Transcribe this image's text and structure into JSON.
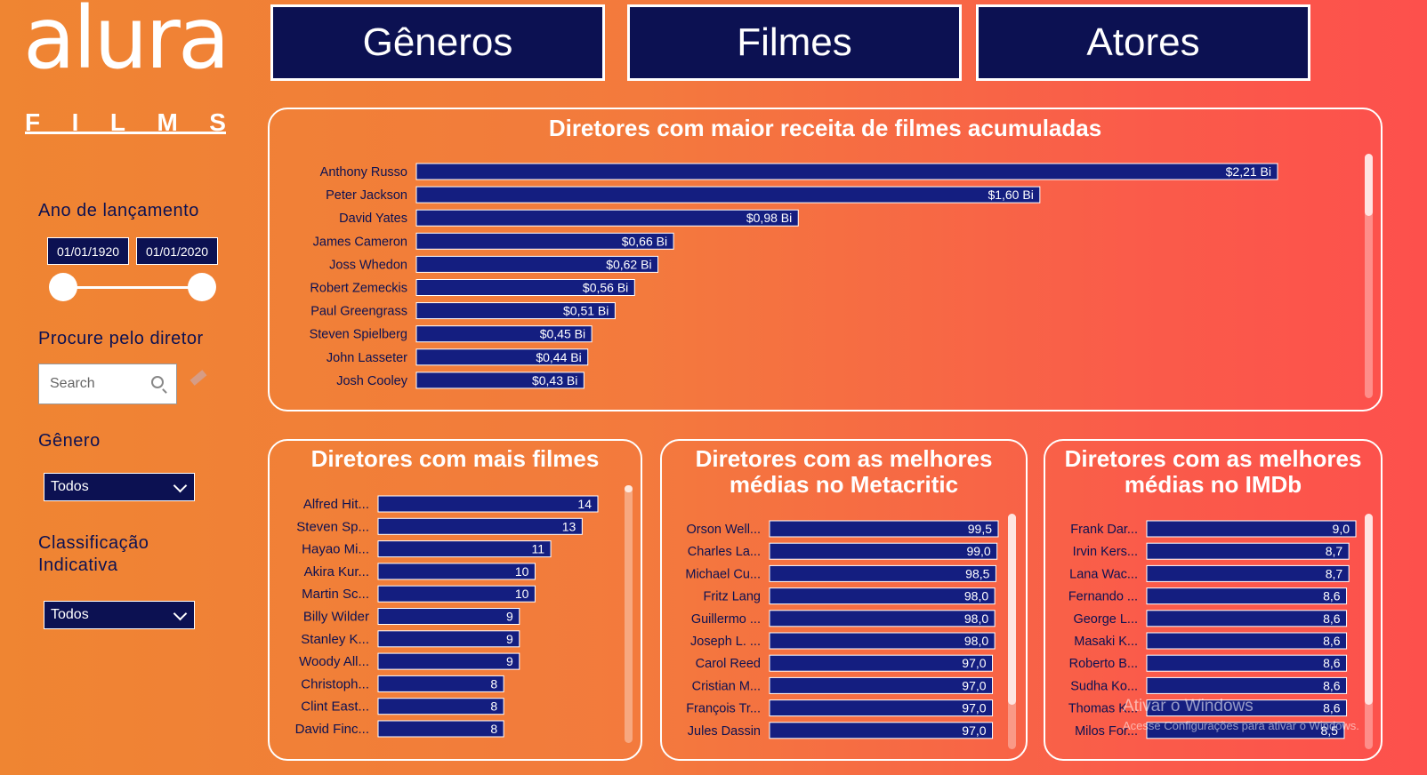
{
  "logo": {
    "main": "alura",
    "sub": [
      "F",
      "I",
      "L",
      "M",
      "S"
    ]
  },
  "nav": [
    {
      "label": "Gêneros"
    },
    {
      "label": "Filmes"
    },
    {
      "label": "Atores"
    }
  ],
  "filters": {
    "year_label": "Ano de lançamento",
    "date_start": "01/01/1920",
    "date_end": "01/01/2020",
    "director_search_label": "Procure pelo diretor",
    "search_placeholder": "Search",
    "genre_label": "Gênero",
    "genre_value": "Todos",
    "rating_label_1": "Classificação",
    "rating_label_2": "Indicativa",
    "rating_value": "Todos"
  },
  "colors": {
    "bar": "#141e80",
    "bar_stroke": "#ffffff",
    "dark": "#0c1152",
    "text": "#0c1152"
  },
  "chart_data": [
    {
      "type": "bar",
      "orientation": "horizontal",
      "title": "Diretores com maior receita de filmes acumuladas",
      "categories": [
        "Anthony Russo",
        "Peter Jackson",
        "David Yates",
        "James Cameron",
        "Joss Whedon",
        "Robert Zemeckis",
        "Paul Greengrass",
        "Steven Spielberg",
        "John Lasseter",
        "Josh Cooley"
      ],
      "values": [
        2.21,
        1.6,
        0.98,
        0.66,
        0.62,
        0.56,
        0.51,
        0.45,
        0.44,
        0.43
      ],
      "value_labels": [
        "$2,21 Bi",
        "$1,60 Bi",
        "$0,98 Bi",
        "$0,66 Bi",
        "$0,62 Bi",
        "$0,56 Bi",
        "$0,51 Bi",
        "$0,45 Bi",
        "$0,44 Bi",
        "$0,43 Bi"
      ],
      "max": 2.21
    },
    {
      "type": "bar",
      "orientation": "horizontal",
      "title": "Diretores com mais filmes",
      "categories": [
        "Alfred Hit...",
        "Steven Sp...",
        "Hayao Mi...",
        "Akira Kur...",
        "Martin Sc...",
        "Billy Wilder",
        "Stanley K...",
        "Woody All...",
        "Christoph...",
        "Clint East...",
        "David Finc..."
      ],
      "values": [
        14,
        13,
        11,
        10,
        10,
        9,
        9,
        9,
        8,
        8,
        8
      ],
      "value_labels": [
        "14",
        "13",
        "11",
        "10",
        "10",
        "9",
        "9",
        "9",
        "8",
        "8",
        "8"
      ],
      "max": 14
    },
    {
      "type": "bar",
      "orientation": "horizontal",
      "title_lines": [
        "Diretores com as melhores",
        "médias no Metacritic"
      ],
      "categories": [
        "Orson Well...",
        "Charles La...",
        "Michael Cu...",
        "Fritz Lang",
        "Guillermo ...",
        "Joseph L. ...",
        "Carol Reed",
        "Cristian M...",
        "François Tr...",
        "Jules Dassin"
      ],
      "values": [
        99.5,
        99.0,
        98.5,
        98.0,
        98.0,
        98.0,
        97.0,
        97.0,
        97.0,
        97.0
      ],
      "value_labels": [
        "99,5",
        "99,0",
        "98,5",
        "98,0",
        "98,0",
        "98,0",
        "97,0",
        "97,0",
        "97,0",
        "97,0"
      ],
      "max": 99.5
    },
    {
      "type": "bar",
      "orientation": "horizontal",
      "title_lines": [
        "Diretores com as melhores",
        "médias no IMDb"
      ],
      "categories": [
        "Frank Dar...",
        "Irvin Kers...",
        "Lana Wac...",
        "Fernando ...",
        "George L...",
        "Masaki K...",
        "Roberto B...",
        "Sudha Ko...",
        "Thomas K...",
        "Milos For..."
      ],
      "values": [
        9.0,
        8.7,
        8.7,
        8.6,
        8.6,
        8.6,
        8.6,
        8.6,
        8.6,
        8.5
      ],
      "value_labels": [
        "9,0",
        "8,7",
        "8,7",
        "8,6",
        "8,6",
        "8,6",
        "8,6",
        "8,6",
        "8,6",
        "8,5"
      ],
      "max": 9.0
    }
  ],
  "watermark": {
    "line1": "Ativar o Windows",
    "line2": "Acesse Configurações para ativar o Windows."
  }
}
